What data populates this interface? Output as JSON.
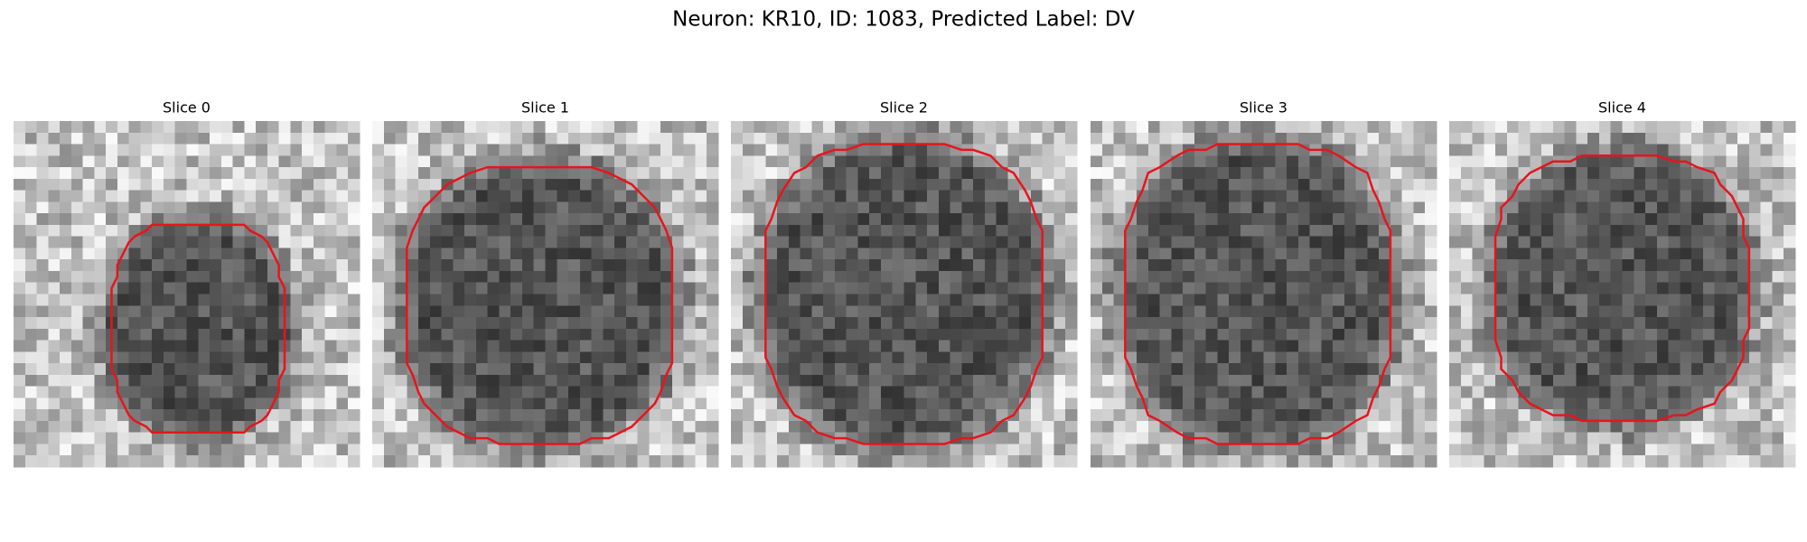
{
  "title": "Neuron: KR10, ID: 1083, Predicted Label: DV",
  "panels": [
    {
      "title": "Slice 0"
    },
    {
      "title": "Slice 1"
    },
    {
      "title": "Slice 2"
    },
    {
      "title": "Slice 3"
    },
    {
      "title": "Slice 4"
    }
  ]
}
